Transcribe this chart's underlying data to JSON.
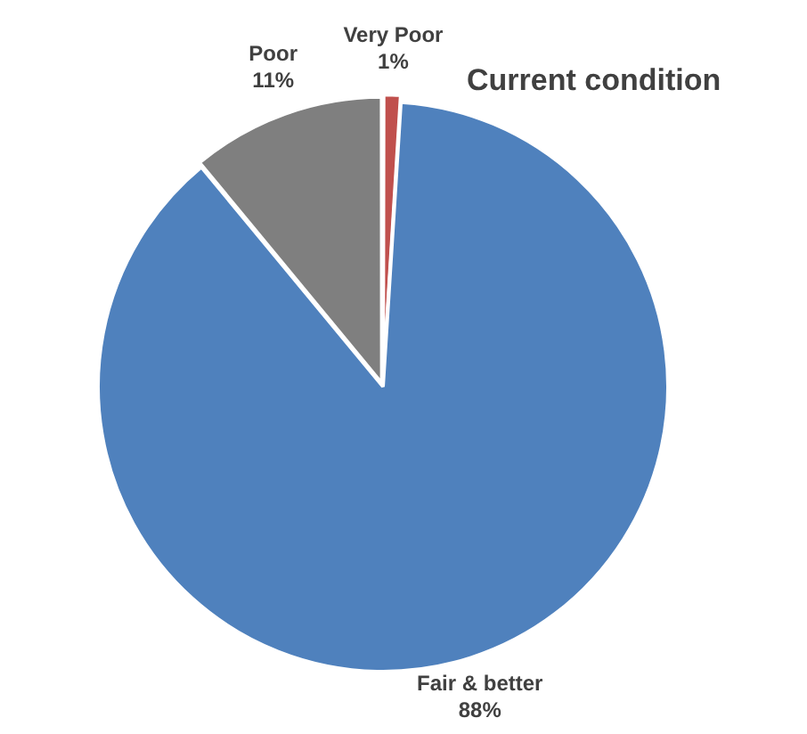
{
  "chart_data": {
    "type": "pie",
    "title": "Current condition",
    "categories": [
      "Very Poor",
      "Fair & better",
      "Poor"
    ],
    "values": [
      1,
      88,
      11
    ],
    "colors": [
      "#c0504d",
      "#4f81bd",
      "#7f7f7f"
    ],
    "value_labels": [
      "1%",
      "88%",
      "11%"
    ],
    "legend": false
  }
}
